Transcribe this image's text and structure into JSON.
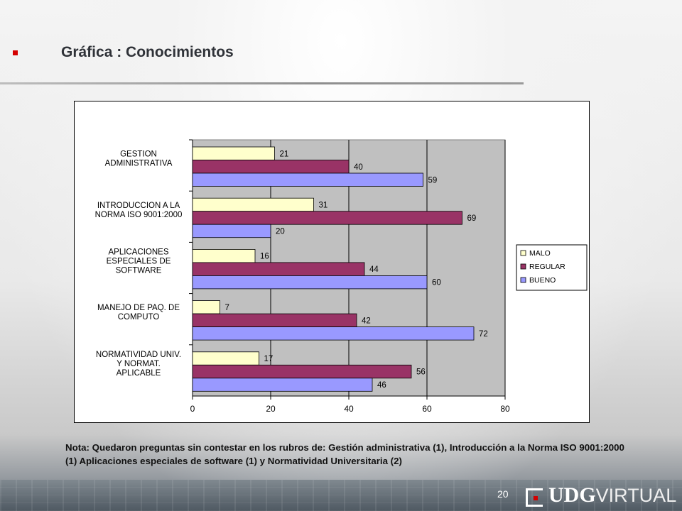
{
  "slide": {
    "title": "Gráfica : Conocimientos",
    "note": "Nota: Quedaron preguntas sin contestar  en los rubros de: Gestión administrativa (1), Introducción a la Norma ISO 9001:2000 (1) Aplicaciones especiales de software (1) y Normatividad Universitaria (2)",
    "page_number": "20",
    "logo": {
      "bold": "UDG",
      "light": "VIRTUAL"
    }
  },
  "chart_data": {
    "type": "bar",
    "orientation": "horizontal",
    "categories": [
      [
        "GESTION",
        "ADMINISTRATIVA"
      ],
      [
        "INTRODUCCION A LA",
        "NORMA ISO 9001:2000"
      ],
      [
        "APLICACIONES",
        "ESPECIALES DE",
        "SOFTWARE"
      ],
      [
        "MANEJO DE PAQ. DE",
        "COMPUTO"
      ],
      [
        "NORMATIVIDAD UNIV.",
        "Y NORMAT.",
        "APLICABLE"
      ]
    ],
    "series": [
      {
        "name": "MALO",
        "color": "#ffffcc",
        "values": [
          21,
          31,
          16,
          7,
          17
        ]
      },
      {
        "name": "REGULAR",
        "color": "#993366",
        "values": [
          40,
          69,
          44,
          42,
          56
        ]
      },
      {
        "name": "BUENO",
        "color": "#9999ff",
        "values": [
          59,
          20,
          60,
          72,
          46
        ]
      }
    ],
    "xlim": [
      0,
      80
    ],
    "xticks": [
      0,
      20,
      40,
      60,
      80
    ],
    "grid": true,
    "plot_background": "#c0c0c0",
    "legend_position": "right"
  }
}
